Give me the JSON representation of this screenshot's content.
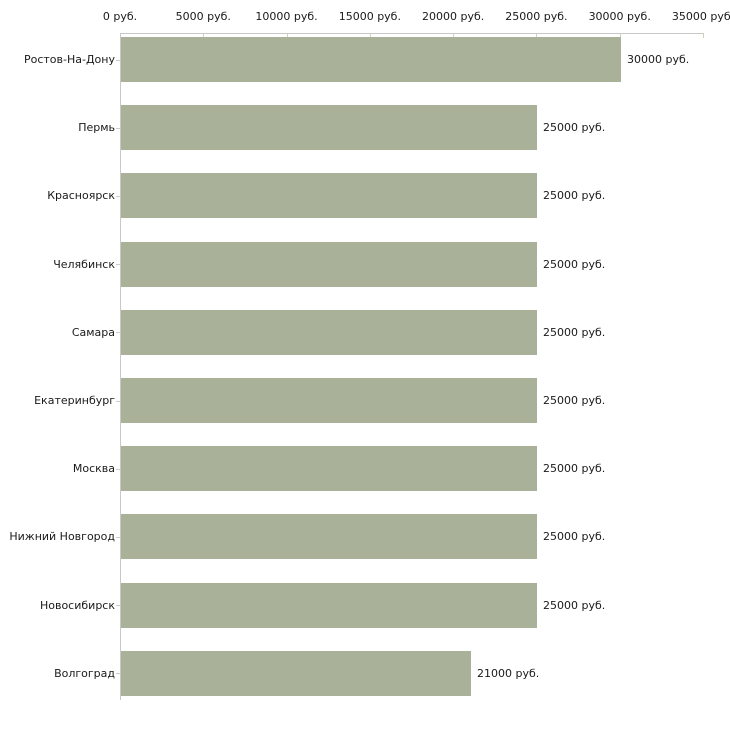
{
  "chart_data": {
    "type": "bar",
    "orientation": "horizontal",
    "title": "",
    "xlabel": "",
    "ylabel": "",
    "unit": "руб.",
    "categories": [
      "Ростов-На-Дону",
      "Пермь",
      "Красноярск",
      "Челябинск",
      "Самара",
      "Екатеринбург",
      "Москва",
      "Нижний Новгород",
      "Новосибирск",
      "Волгоград"
    ],
    "values": [
      30000,
      25000,
      25000,
      25000,
      25000,
      25000,
      25000,
      25000,
      25000,
      21000
    ],
    "value_labels": [
      "30000 руб.",
      "25000 руб.",
      "25000 руб.",
      "25000 руб.",
      "25000 руб.",
      "25000 руб.",
      "25000 руб.",
      "25000 руб.",
      "25000 руб.",
      "21000 руб."
    ],
    "x_axis": {
      "position": "top",
      "range": [
        0,
        35000
      ],
      "ticks": [
        0,
        5000,
        10000,
        15000,
        20000,
        25000,
        30000,
        35000
      ],
      "tick_labels": [
        "0 руб.",
        "5000 руб.",
        "10000 руб.",
        "15000 руб.",
        "20000 руб.",
        "25000 руб.",
        "30000 руб.",
        "35000 руб."
      ]
    },
    "grid": "off",
    "legend": "none",
    "colors": {
      "bar": "#aab199",
      "axis_line": "#c8c8c8",
      "tick": "#cfcfba",
      "text": "#1a1a1a",
      "background": "#ffffff"
    }
  }
}
